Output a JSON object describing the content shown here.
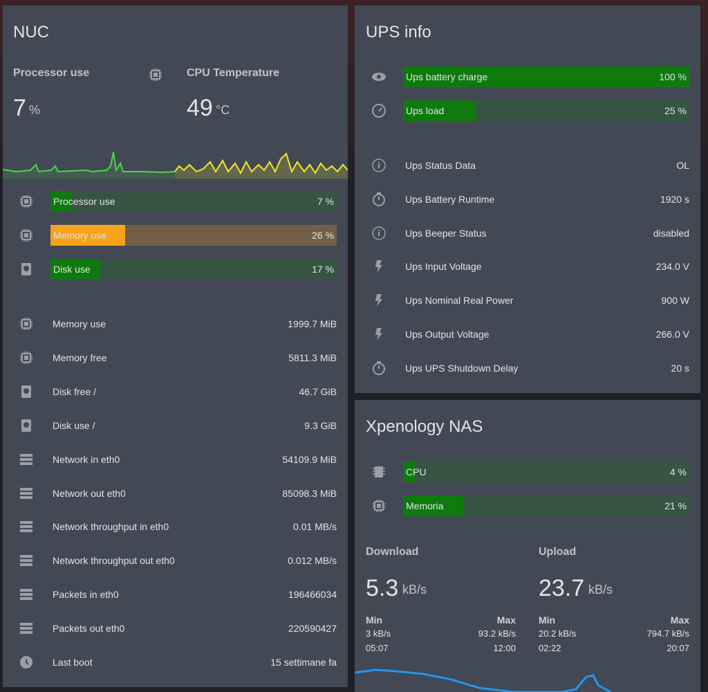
{
  "nuc": {
    "title": "NUC",
    "sensors": [
      {
        "name": "Processor use",
        "value": "7",
        "unit": "%"
      },
      {
        "name": "CPU Temperature",
        "value": "49",
        "unit": "°C"
      }
    ],
    "bars": [
      {
        "name": "Processor use",
        "value": 7,
        "label": "7 %",
        "color": "#0e7a0e"
      },
      {
        "name": "Memory use",
        "value": 26,
        "label": "26 %",
        "color": "#f9a21b"
      },
      {
        "name": "Disk use",
        "value": 17,
        "label": "17 %",
        "color": "#0e7a0e"
      }
    ],
    "rows": [
      {
        "name": "Memory use",
        "value": "1999.7 MiB"
      },
      {
        "name": "Memory free",
        "value": "5811.3 MiB"
      },
      {
        "name": "Disk free /",
        "value": "46.7 GiB"
      },
      {
        "name": "Disk use /",
        "value": "9.3 GiB"
      },
      {
        "name": "Network in eth0",
        "value": "54109.9 MiB"
      },
      {
        "name": "Network out eth0",
        "value": "85098.3 MiB"
      },
      {
        "name": "Network throughput in eth0",
        "value": "0.01 MB/s"
      },
      {
        "name": "Network throughput out eth0",
        "value": "0.012 MB/s"
      },
      {
        "name": "Packets in eth0",
        "value": "196466034"
      },
      {
        "name": "Packets out eth0",
        "value": "220590427"
      },
      {
        "name": "Last boot",
        "value": "15 settimane fa"
      }
    ]
  },
  "ups": {
    "title": "UPS info",
    "bars": [
      {
        "name": "Ups battery charge",
        "value": 100,
        "label": "100 %",
        "color": "#0e7a0e"
      },
      {
        "name": "Ups load",
        "value": 25,
        "label": "25 %",
        "color": "#0e7a0e"
      }
    ],
    "rows": [
      {
        "name": "Ups Status Data",
        "value": "OL"
      },
      {
        "name": "Ups Battery Runtime",
        "value": "1920 s"
      },
      {
        "name": "Ups Beeper Status",
        "value": "disabled"
      },
      {
        "name": "Ups Input Voltage",
        "value": "234.0 V"
      },
      {
        "name": "Ups Nominal Real Power",
        "value": "900 W"
      },
      {
        "name": "Ups Output Voltage",
        "value": "266.0 V"
      },
      {
        "name": "Ups UPS Shutdown Delay",
        "value": "20 s"
      }
    ]
  },
  "nas": {
    "title": "Xpenology NAS",
    "bars": [
      {
        "name": "CPU",
        "value": 4,
        "label": "4 %",
        "color": "#0e7a0e"
      },
      {
        "name": "Memoria",
        "value": 21,
        "label": "21 %",
        "color": "#0e7a0e"
      }
    ],
    "sensors": [
      {
        "name": "Download",
        "value": "5.3",
        "unit": "kB/s",
        "min_label": "Min",
        "max_label": "Max",
        "min": "3 kB/s",
        "max": "93.2 kB/s",
        "min_time": "05:07",
        "max_time": "12:00"
      },
      {
        "name": "Upload",
        "value": "23.7",
        "unit": "kB/s",
        "min_label": "Min",
        "max_label": "Max",
        "min": "20.2 kB/s",
        "max": "794.7 kB/s",
        "min_time": "02:22",
        "max_time": "20:07"
      }
    ]
  }
}
